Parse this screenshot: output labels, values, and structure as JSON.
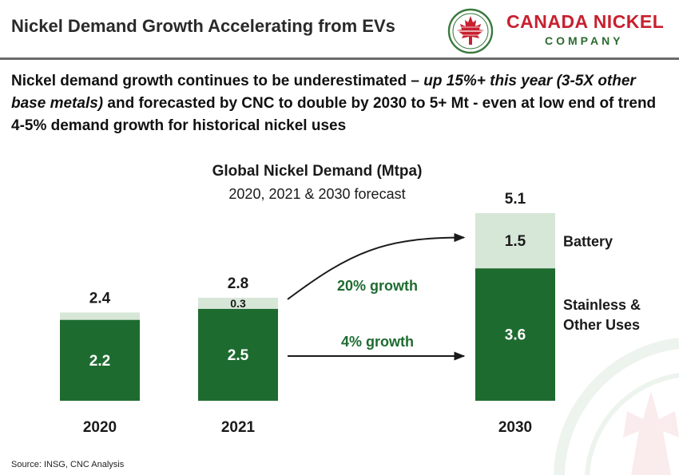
{
  "header": {
    "title": "Nickel Demand Growth Accelerating from EVs",
    "logo_text": "CANADA NICKEL",
    "logo_sub": "COMPANY"
  },
  "headline": {
    "part1": "Nickel demand growth continues to be underestimated – ",
    "emphasis": "up 15%+ this year (3-5X other base metals)",
    "part2": " and forecasted by CNC to double by 2030 to 5+ Mt - even at low end of trend 4-5% demand growth for historical nickel uses"
  },
  "chart_data": {
    "type": "bar",
    "stacked": true,
    "title": "Global Nickel Demand (Mtpa)",
    "subtitle": "2020, 2021 & 2030 forecast",
    "categories": [
      "2020",
      "2021",
      "2030"
    ],
    "series": [
      {
        "name": "Stainless & Other Uses",
        "values": [
          2.2,
          2.5,
          3.6
        ],
        "labels": [
          "2.2",
          "2.5",
          "3.6"
        ],
        "color": "#1e6b30",
        "label_color": "#ffffff"
      },
      {
        "name": "Battery",
        "values": [
          0.2,
          0.3,
          1.5
        ],
        "labels": [
          "",
          "0.3",
          "1.5"
        ],
        "color": "#d6e6d7",
        "label_color": "#1a1a1a"
      }
    ],
    "totals": [
      "2.4",
      "2.8",
      "5.1"
    ],
    "legend": [
      "Battery",
      "Stainless & Other Uses"
    ],
    "annotations": [
      {
        "text": "20% growth",
        "from_category": "2021",
        "to_category": "2030",
        "series": "Battery"
      },
      {
        "text": "4% growth",
        "from_category": "2021",
        "to_category": "2030",
        "series": "Stainless & Other Uses"
      }
    ],
    "annotation_color": "#1e6b30",
    "ylim": [
      0,
      5.1
    ],
    "grid": false
  },
  "footer": {
    "source": "Source: INSG, CNC Analysis"
  }
}
